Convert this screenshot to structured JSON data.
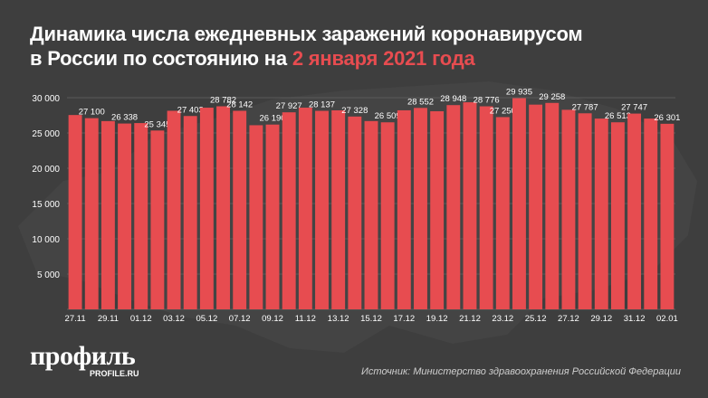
{
  "header": {
    "title_line1": "Динамика числа ежедневных заражений коронавирусом",
    "title_line2_prefix": "в России по состоянию на ",
    "title_line2_accent": "2 января 2021 года"
  },
  "footer": {
    "logo_text": "профиль",
    "logo_subtext": "PROFILE.RU",
    "source": "Источник: Министерство здравоохранения Российской Федерации"
  },
  "colors": {
    "background": "#3e3e3e",
    "bar": "#e74c50",
    "accent": "#e74c50",
    "grid": "#5a5a5a",
    "text": "#ffffff"
  },
  "chart_data": {
    "type": "bar",
    "title": "Динамика числа ежедневных заражений коронавирусом в России по состоянию на 2 января 2021 года",
    "xlabel": "",
    "ylabel": "",
    "ylim": [
      0,
      30000
    ],
    "yticks": [
      0,
      5000,
      10000,
      15000,
      20000,
      25000,
      30000
    ],
    "ytick_labels": [
      "",
      "5 000",
      "10 000",
      "15 000",
      "20 000",
      "25 000",
      "30 000"
    ],
    "categories": [
      "27.11",
      "28.11",
      "29.11",
      "30.11",
      "01.12",
      "02.12",
      "03.12",
      "04.12",
      "05.12",
      "06.12",
      "07.12",
      "08.12",
      "09.12",
      "10.12",
      "11.12",
      "12.12",
      "13.12",
      "14.12",
      "15.12",
      "16.12",
      "17.12",
      "18.12",
      "19.12",
      "20.12",
      "21.12",
      "22.12",
      "23.12",
      "24.12",
      "25.12",
      "26.12",
      "27.12",
      "28.12",
      "29.12",
      "30.12",
      "31.12",
      "01.01",
      "02.01"
    ],
    "xtick_labels": [
      "27.11",
      "",
      "29.11",
      "",
      "01.12",
      "",
      "03.12",
      "",
      "05.12",
      "",
      "07.12",
      "",
      "09.12",
      "",
      "11.12",
      "",
      "13.12",
      "",
      "15.12",
      "",
      "17.12",
      "",
      "19.12",
      "",
      "21.12",
      "",
      "23.12",
      "",
      "25.12",
      "",
      "27.12",
      "",
      "29.12",
      "",
      "31.12",
      "",
      "02.01"
    ],
    "values": [
      27543,
      27100,
      26683,
      26338,
      26402,
      25345,
      28145,
      27403,
      28585,
      28782,
      28142,
      26097,
      26190,
      27927,
      28585,
      28137,
      28209,
      27328,
      26689,
      26509,
      28214,
      28552,
      28080,
      28948,
      29350,
      28776,
      27250,
      29935,
      29018,
      29258,
      28284,
      27787,
      27039,
      26513,
      27747,
      27039,
      26301
    ],
    "data_labels": [
      "",
      "27 100",
      "",
      "26 338",
      "",
      "25 345",
      "",
      "27 403",
      "",
      "28 782",
      "28 142",
      "",
      "26 190",
      "27 927",
      "",
      "28 137",
      "",
      "27 328",
      "",
      "26 509",
      "",
      "28 552",
      "",
      "28 948",
      "",
      "28 776",
      "27 250",
      "29 935",
      "",
      "29 258",
      "",
      "27 787",
      "",
      "26 513",
      "27 747",
      "",
      "26 301"
    ],
    "grid": true,
    "legend": "none"
  }
}
